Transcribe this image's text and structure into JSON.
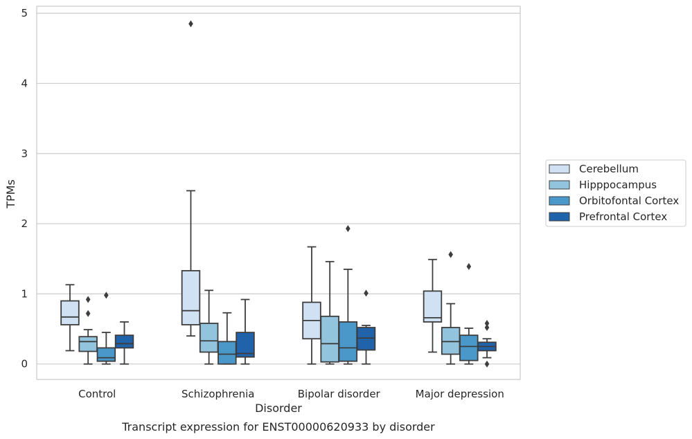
{
  "chart_data": {
    "type": "box",
    "caption": "Transcript expression for ENST00000620933 by disorder",
    "xlabel": "Disorder",
    "ylabel": "TPMs",
    "ylim": [
      -0.22,
      5.1
    ],
    "yticks": [
      0,
      1,
      2,
      3,
      4,
      5
    ],
    "grid": "horizontal",
    "legend_position": "right",
    "categories": [
      "Control",
      "Schizophrenia",
      "Bipolar disorder",
      "Major depression"
    ],
    "series": [
      {
        "name": "Cerebellum",
        "color": "#cfe1f2",
        "boxes": [
          {
            "whisker_low": 0.19,
            "q1": 0.56,
            "median": 0.67,
            "q3": 0.9,
            "whisker_high": 1.13,
            "outliers": []
          },
          {
            "whisker_low": 0.4,
            "q1": 0.56,
            "median": 0.76,
            "q3": 1.33,
            "whisker_high": 2.47,
            "outliers": [
              4.85
            ]
          },
          {
            "whisker_low": 0.0,
            "q1": 0.36,
            "median": 0.62,
            "q3": 0.88,
            "whisker_high": 1.67,
            "outliers": []
          },
          {
            "whisker_low": 0.17,
            "q1": 0.6,
            "median": 0.66,
            "q3": 1.04,
            "whisker_high": 1.49,
            "outliers": []
          }
        ]
      },
      {
        "name": "Hipppocampus",
        "color": "#93c4de",
        "boxes": [
          {
            "whisker_low": 0.0,
            "q1": 0.18,
            "median": 0.32,
            "q3": 0.39,
            "whisker_high": 0.49,
            "outliers": [
              0.72,
              0.92
            ]
          },
          {
            "whisker_low": 0.0,
            "q1": 0.17,
            "median": 0.33,
            "q3": 0.58,
            "whisker_high": 1.05,
            "outliers": []
          },
          {
            "whisker_low": 0.0,
            "q1": 0.03,
            "median": 0.29,
            "q3": 0.68,
            "whisker_high": 1.46,
            "outliers": []
          },
          {
            "whisker_low": 0.0,
            "q1": 0.14,
            "median": 0.32,
            "q3": 0.52,
            "whisker_high": 0.86,
            "outliers": [
              1.56
            ]
          }
        ]
      },
      {
        "name": "Orbitofontal Cortex",
        "color": "#4a98c9",
        "boxes": [
          {
            "whisker_low": 0.0,
            "q1": 0.04,
            "median": 0.09,
            "q3": 0.23,
            "whisker_high": 0.45,
            "outliers": [
              0.98
            ]
          },
          {
            "whisker_low": 0.0,
            "q1": 0.0,
            "median": 0.14,
            "q3": 0.32,
            "whisker_high": 0.73,
            "outliers": []
          },
          {
            "whisker_low": 0.0,
            "q1": 0.04,
            "median": 0.23,
            "q3": 0.6,
            "whisker_high": 1.35,
            "outliers": [
              1.93
            ]
          },
          {
            "whisker_low": 0.0,
            "q1": 0.05,
            "median": 0.25,
            "q3": 0.41,
            "whisker_high": 0.51,
            "outliers": [
              1.39
            ]
          }
        ]
      },
      {
        "name": "Prefrontal Cortex",
        "color": "#2163aa",
        "boxes": [
          {
            "whisker_low": 0.0,
            "q1": 0.23,
            "median": 0.29,
            "q3": 0.41,
            "whisker_high": 0.6,
            "outliers": []
          },
          {
            "whisker_low": 0.0,
            "q1": 0.1,
            "median": 0.15,
            "q3": 0.45,
            "whisker_high": 0.92,
            "outliers": []
          },
          {
            "whisker_low": 0.0,
            "q1": 0.2,
            "median": 0.37,
            "q3": 0.52,
            "whisker_high": 0.55,
            "outliers": [
              1.01
            ]
          },
          {
            "whisker_low": 0.09,
            "q1": 0.19,
            "median": 0.25,
            "q3": 0.31,
            "whisker_high": 0.36,
            "outliers": [
              0.0,
              0.52,
              0.58
            ]
          }
        ]
      }
    ]
  }
}
